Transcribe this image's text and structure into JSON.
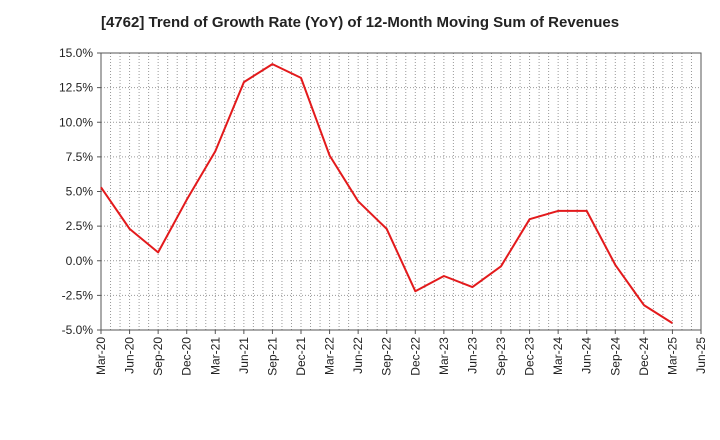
{
  "chart_data": {
    "type": "line",
    "title": "[4762]  Trend of Growth Rate (YoY) of 12-Month Moving Sum of Revenues",
    "xlabel": "",
    "ylabel": "",
    "ylim": [
      -5.0,
      15.0
    ],
    "yticks": [
      "15.0%",
      "12.5%",
      "10.0%",
      "7.5%",
      "5.0%",
      "2.5%",
      "0.0%",
      "-2.5%",
      "-5.0%"
    ],
    "ytick_values": [
      15.0,
      12.5,
      10.0,
      7.5,
      5.0,
      2.5,
      0.0,
      -2.5,
      -5.0
    ],
    "categories": [
      "Mar-20",
      "Jun-20",
      "Sep-20",
      "Dec-20",
      "Mar-21",
      "Jun-21",
      "Sep-21",
      "Dec-21",
      "Mar-22",
      "Jun-22",
      "Sep-22",
      "Dec-22",
      "Mar-23",
      "Jun-23",
      "Sep-23",
      "Dec-23",
      "Mar-24",
      "Jun-24",
      "Sep-24",
      "Dec-24",
      "Mar-25",
      "Jun-25"
    ],
    "series": [
      {
        "color": "#e31a1c",
        "values": [
          5.3,
          2.3,
          0.6,
          4.4,
          7.9,
          12.9,
          14.2,
          13.2,
          7.6,
          4.3,
          2.3,
          -2.2,
          -1.1,
          -1.9,
          -0.4,
          3.0,
          3.6,
          3.6,
          -0.3,
          -3.2,
          -4.5,
          null
        ]
      }
    ],
    "grid": true,
    "grid_style": "dotted"
  }
}
